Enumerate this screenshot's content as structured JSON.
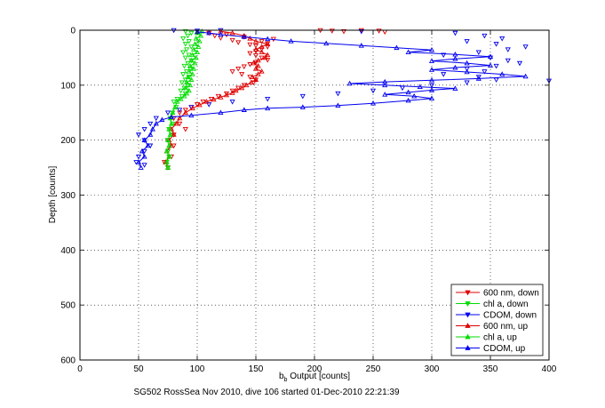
{
  "chart_data": {
    "type": "scatter",
    "title": "",
    "xlabel": "b",
    "xlabel_sub": "b",
    "xlabel_rest": " Output [counts]",
    "ylabel": "Depth [counts]",
    "caption": "SG502 RossSea Nov 2010, dive 106 started 01-Dec-2010 22:21:39",
    "xlim": [
      0,
      400
    ],
    "ylim": [
      0,
      600
    ],
    "y_reversed": true,
    "x_ticks": [
      0,
      50,
      100,
      150,
      200,
      250,
      300,
      350,
      400
    ],
    "y_ticks": [
      0,
      100,
      200,
      300,
      400,
      500,
      600
    ],
    "grid": true,
    "legend_position": "bottom-right",
    "series": [
      {
        "name": "600 nm, down",
        "color": "#e00000",
        "marker": "triangle-down",
        "line": false,
        "points": [
          [
            205,
            0
          ],
          [
            215,
            1
          ],
          [
            225,
            2
          ],
          [
            240,
            0
          ],
          [
            255,
            1
          ],
          [
            260,
            3
          ],
          [
            110,
            5
          ],
          [
            115,
            10
          ],
          [
            120,
            14
          ],
          [
            125,
            8
          ],
          [
            130,
            18
          ],
          [
            135,
            22
          ],
          [
            140,
            12
          ],
          [
            145,
            26
          ],
          [
            150,
            28
          ],
          [
            155,
            20
          ],
          [
            160,
            24
          ],
          [
            165,
            16
          ],
          [
            160,
            30
          ],
          [
            155,
            34
          ],
          [
            150,
            38
          ],
          [
            145,
            42
          ],
          [
            150,
            46
          ],
          [
            155,
            50
          ],
          [
            160,
            54
          ],
          [
            150,
            58
          ],
          [
            145,
            62
          ],
          [
            140,
            66
          ],
          [
            135,
            70
          ],
          [
            130,
            75
          ],
          [
            138,
            80
          ],
          [
            145,
            85
          ],
          [
            150,
            90
          ],
          [
            148,
            95
          ],
          [
            140,
            100
          ],
          [
            135,
            105
          ],
          [
            130,
            110
          ],
          [
            125,
            115
          ],
          [
            118,
            120
          ],
          [
            112,
            125
          ],
          [
            105,
            130
          ],
          [
            100,
            135
          ],
          [
            95,
            140
          ],
          [
            90,
            145
          ],
          [
            85,
            150
          ],
          [
            80,
            160
          ],
          [
            85,
            170
          ],
          [
            90,
            180
          ],
          [
            80,
            190
          ],
          [
            75,
            200
          ],
          [
            80,
            210
          ],
          [
            75,
            220
          ],
          [
            78,
            230
          ],
          [
            72,
            240
          ],
          [
            75,
            250
          ]
        ]
      },
      {
        "name": "chl a, down",
        "color": "#00dd00",
        "marker": "triangle-down",
        "line": false,
        "points": [
          [
            90,
            2
          ],
          [
            95,
            5
          ],
          [
            92,
            10
          ],
          [
            88,
            15
          ],
          [
            93,
            20
          ],
          [
            90,
            25
          ],
          [
            95,
            30
          ],
          [
            91,
            35
          ],
          [
            88,
            40
          ],
          [
            93,
            45
          ],
          [
            90,
            50
          ],
          [
            95,
            55
          ],
          [
            92,
            60
          ],
          [
            89,
            65
          ],
          [
            94,
            70
          ],
          [
            91,
            75
          ],
          [
            88,
            80
          ],
          [
            93,
            85
          ],
          [
            90,
            90
          ],
          [
            87,
            95
          ],
          [
            92,
            100
          ],
          [
            89,
            105
          ],
          [
            86,
            110
          ],
          [
            90,
            115
          ],
          [
            87,
            120
          ],
          [
            83,
            125
          ],
          [
            80,
            130
          ],
          [
            82,
            140
          ],
          [
            79,
            150
          ],
          [
            77,
            160
          ],
          [
            79,
            170
          ],
          [
            76,
            180
          ],
          [
            78,
            190
          ],
          [
            75,
            200
          ],
          [
            77,
            210
          ],
          [
            75,
            220
          ],
          [
            76,
            230
          ],
          [
            74,
            240
          ],
          [
            75,
            250
          ]
        ]
      },
      {
        "name": "CDOM, down",
        "color": "#0000ee",
        "marker": "triangle-down",
        "line": false,
        "points": [
          [
            80,
            0
          ],
          [
            100,
            1
          ],
          [
            120,
            0
          ],
          [
            240,
            2
          ],
          [
            320,
            5
          ],
          [
            345,
            10
          ],
          [
            360,
            15
          ],
          [
            330,
            20
          ],
          [
            355,
            25
          ],
          [
            380,
            30
          ],
          [
            365,
            35
          ],
          [
            340,
            40
          ],
          [
            310,
            45
          ],
          [
            350,
            50
          ],
          [
            365,
            55
          ],
          [
            375,
            60
          ],
          [
            355,
            65
          ],
          [
            330,
            70
          ],
          [
            345,
            75
          ],
          [
            310,
            80
          ],
          [
            340,
            85
          ],
          [
            355,
            90
          ],
          [
            330,
            95
          ],
          [
            400,
            92
          ],
          [
            300,
            100
          ],
          [
            275,
            105
          ],
          [
            250,
            110
          ],
          [
            220,
            115
          ],
          [
            190,
            120
          ],
          [
            160,
            125
          ],
          [
            130,
            130
          ],
          [
            110,
            135
          ],
          [
            95,
            140
          ],
          [
            85,
            145
          ],
          [
            75,
            150
          ],
          [
            65,
            160
          ],
          [
            60,
            170
          ],
          [
            55,
            180
          ],
          [
            50,
            190
          ],
          [
            55,
            200
          ],
          [
            60,
            210
          ],
          [
            55,
            220
          ],
          [
            50,
            230
          ],
          [
            48,
            240
          ],
          [
            55,
            245
          ]
        ]
      },
      {
        "name": "600 nm, up",
        "color": "#e00000",
        "marker": "triangle-up",
        "line": true,
        "points": [
          [
            75,
            250
          ],
          [
            73,
            240
          ],
          [
            76,
            230
          ],
          [
            74,
            220
          ],
          [
            78,
            210
          ],
          [
            76,
            200
          ],
          [
            80,
            190
          ],
          [
            78,
            180
          ],
          [
            82,
            170
          ],
          [
            85,
            160
          ],
          [
            90,
            150
          ],
          [
            96,
            142
          ],
          [
            102,
            136
          ],
          [
            108,
            130
          ],
          [
            114,
            126
          ],
          [
            120,
            122
          ],
          [
            125,
            118
          ],
          [
            130,
            114
          ],
          [
            133,
            110
          ],
          [
            138,
            105
          ],
          [
            142,
            100
          ],
          [
            146,
            95
          ],
          [
            150,
            90
          ],
          [
            147,
            85
          ],
          [
            152,
            80
          ],
          [
            155,
            75
          ],
          [
            150,
            70
          ],
          [
            152,
            65
          ],
          [
            148,
            60
          ],
          [
            152,
            55
          ],
          [
            158,
            50
          ],
          [
            160,
            45
          ],
          [
            155,
            40
          ],
          [
            150,
            35
          ],
          [
            155,
            30
          ],
          [
            160,
            25
          ],
          [
            150,
            20
          ],
          [
            145,
            15
          ],
          [
            140,
            10
          ],
          [
            130,
            5
          ],
          [
            120,
            2
          ]
        ]
      },
      {
        "name": "chl a, up",
        "color": "#00dd00",
        "marker": "triangle-up",
        "line": true,
        "points": [
          [
            75,
            250
          ],
          [
            74,
            240
          ],
          [
            76,
            230
          ],
          [
            74,
            220
          ],
          [
            76,
            210
          ],
          [
            75,
            200
          ],
          [
            77,
            190
          ],
          [
            76,
            180
          ],
          [
            78,
            170
          ],
          [
            77,
            160
          ],
          [
            79,
            150
          ],
          [
            81,
            140
          ],
          [
            83,
            130
          ],
          [
            86,
            125
          ],
          [
            89,
            120
          ],
          [
            91,
            115
          ],
          [
            93,
            110
          ],
          [
            90,
            105
          ],
          [
            94,
            100
          ],
          [
            91,
            95
          ],
          [
            95,
            90
          ],
          [
            92,
            85
          ],
          [
            96,
            80
          ],
          [
            93,
            75
          ],
          [
            97,
            70
          ],
          [
            94,
            65
          ],
          [
            98,
            60
          ],
          [
            95,
            55
          ],
          [
            99,
            50
          ],
          [
            96,
            45
          ],
          [
            100,
            40
          ],
          [
            97,
            35
          ],
          [
            101,
            30
          ],
          [
            98,
            25
          ],
          [
            102,
            20
          ],
          [
            99,
            15
          ],
          [
            103,
            10
          ],
          [
            100,
            5
          ],
          [
            104,
            2
          ]
        ]
      },
      {
        "name": "CDOM, up",
        "color": "#0000ee",
        "marker": "triangle-up",
        "line": true,
        "points": [
          [
            52,
            250
          ],
          [
            50,
            240
          ],
          [
            55,
            230
          ],
          [
            53,
            220
          ],
          [
            58,
            210
          ],
          [
            55,
            200
          ],
          [
            60,
            190
          ],
          [
            62,
            180
          ],
          [
            65,
            170
          ],
          [
            70,
            163
          ],
          [
            78,
            158
          ],
          [
            95,
            155
          ],
          [
            120,
            150
          ],
          [
            140,
            145
          ],
          [
            160,
            142
          ],
          [
            190,
            140
          ],
          [
            220,
            137
          ],
          [
            250,
            133
          ],
          [
            280,
            128
          ],
          [
            300,
            124
          ],
          [
            285,
            120
          ],
          [
            260,
            117
          ],
          [
            280,
            113
          ],
          [
            300,
            109
          ],
          [
            320,
            106
          ],
          [
            290,
            103
          ],
          [
            260,
            100
          ],
          [
            230,
            97
          ],
          [
            260,
            94
          ],
          [
            300,
            91
          ],
          [
            340,
            88
          ],
          [
            380,
            84
          ],
          [
            360,
            80
          ],
          [
            330,
            76
          ],
          [
            300,
            72
          ],
          [
            320,
            68
          ],
          [
            350,
            64
          ],
          [
            330,
            60
          ],
          [
            300,
            56
          ],
          [
            320,
            52
          ],
          [
            350,
            48
          ],
          [
            320,
            44
          ],
          [
            280,
            40
          ],
          [
            300,
            36
          ],
          [
            270,
            32
          ],
          [
            240,
            28
          ],
          [
            210,
            24
          ],
          [
            180,
            20
          ],
          [
            160,
            16
          ],
          [
            140,
            12
          ],
          [
            120,
            8
          ],
          [
            110,
            5
          ],
          [
            100,
            3
          ]
        ]
      }
    ]
  }
}
